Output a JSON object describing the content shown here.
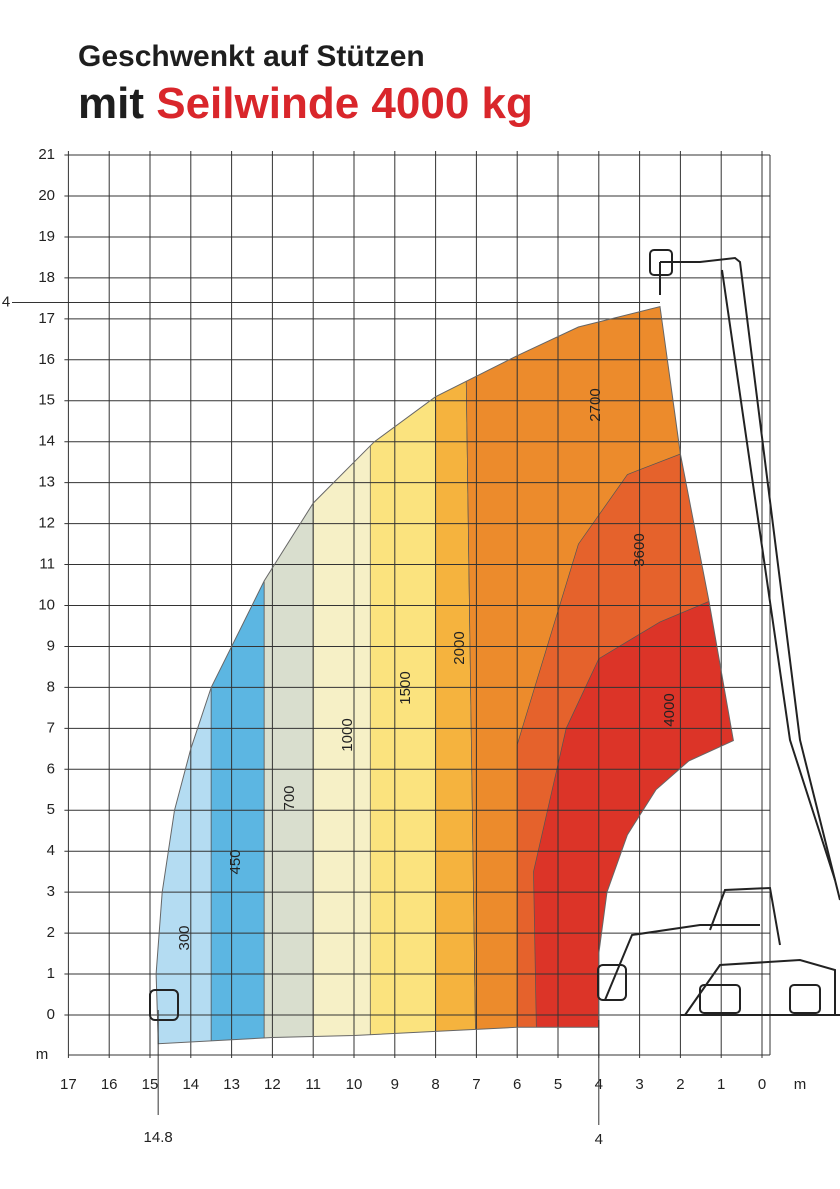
{
  "title": {
    "line1": "Geschwenkt auf Stützen",
    "line2_prefix": "mit",
    "line2_highlight": "Seilwinde 4000 kg"
  },
  "y_axis": {
    "ticks": [
      0,
      1,
      2,
      3,
      4,
      5,
      6,
      7,
      8,
      9,
      10,
      11,
      12,
      13,
      14,
      15,
      16,
      17,
      18,
      19,
      20,
      21
    ],
    "unit": "m"
  },
  "x_axis": {
    "ticks": [
      17,
      16,
      15,
      14,
      13,
      12,
      11,
      10,
      9,
      8,
      7,
      6,
      5,
      4,
      3,
      2,
      1,
      0
    ],
    "unit": "m"
  },
  "annotations": {
    "max_height_label": "4",
    "reach_label": "14.8",
    "min_reach_label": "4"
  },
  "zones": [
    {
      "label": "300"
    },
    {
      "label": "450"
    },
    {
      "label": "700"
    },
    {
      "label": "1000"
    },
    {
      "label": "1500"
    },
    {
      "label": "2000"
    },
    {
      "label": "2700"
    },
    {
      "label": "3600"
    },
    {
      "label": "4000"
    }
  ]
}
